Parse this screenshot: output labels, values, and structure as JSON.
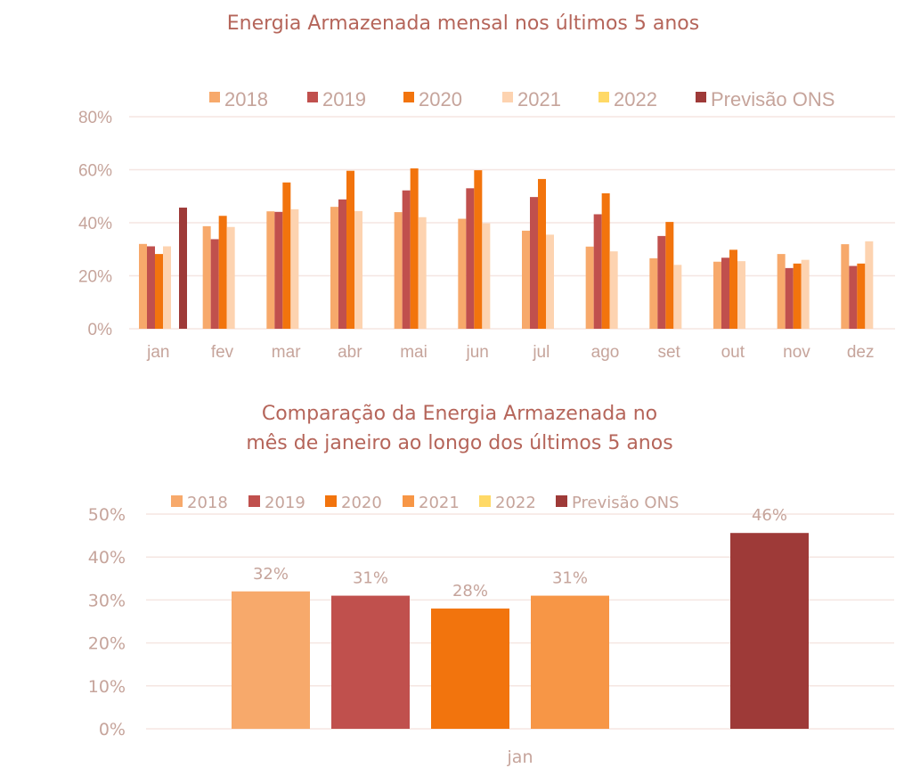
{
  "chart_data": [
    {
      "type": "bar",
      "title": "Energia Armazenada mensal nos últimos 5 anos",
      "xlabel": "",
      "ylabel": "",
      "ylim": [
        0,
        0.8
      ],
      "y_ticks": [
        "0%",
        "20%",
        "40%",
        "60%",
        "80%"
      ],
      "y_tick_values": [
        0,
        0.2,
        0.4,
        0.6,
        0.8
      ],
      "grid": true,
      "legend_position": "top",
      "categories": [
        "jan",
        "fev",
        "mar",
        "abr",
        "mai",
        "jun",
        "jul",
        "ago",
        "set",
        "out",
        "nov",
        "dez"
      ],
      "series": [
        {
          "name": "2018",
          "color": "#F7A96B",
          "values": [
            0.32,
            0.387,
            0.443,
            0.46,
            0.44,
            0.415,
            0.37,
            0.31,
            0.266,
            0.253,
            0.282,
            0.319
          ]
        },
        {
          "name": "2019",
          "color": "#C0504D",
          "values": [
            0.311,
            0.338,
            0.441,
            0.488,
            0.522,
            0.53,
            0.497,
            0.432,
            0.35,
            0.268,
            0.229,
            0.237
          ]
        },
        {
          "name": "2020",
          "color": "#F2740D",
          "values": [
            0.282,
            0.426,
            0.552,
            0.596,
            0.605,
            0.598,
            0.565,
            0.511,
            0.403,
            0.298,
            0.246,
            0.246
          ]
        },
        {
          "name": "2021",
          "color": "#FDD3B0",
          "values": [
            0.311,
            0.384,
            0.451,
            0.444,
            0.421,
            0.398,
            0.355,
            0.292,
            0.241,
            0.255,
            0.26,
            0.33
          ]
        },
        {
          "name": "2022",
          "color": "#FFD966",
          "values": [
            null,
            null,
            null,
            null,
            null,
            null,
            null,
            null,
            null,
            null,
            null,
            null
          ]
        },
        {
          "name": "Previsão ONS",
          "color": "#9E3A38",
          "values": [
            0.457,
            null,
            null,
            null,
            null,
            null,
            null,
            null,
            null,
            null,
            null,
            null
          ]
        }
      ]
    },
    {
      "type": "bar",
      "title": "Comparação da Energia Armazenada no mês de janeiro ao longo dos últimos 5 anos",
      "title_lines": [
        "Comparação da Energia Armazenada no",
        "mês de janeiro ao longo dos últimos 5 anos"
      ],
      "xlabel": "",
      "ylabel": "",
      "ylim": [
        0,
        0.5
      ],
      "y_ticks": [
        "0%",
        "10%",
        "20%",
        "30%",
        "40%",
        "50%"
      ],
      "y_tick_values": [
        0,
        0.1,
        0.2,
        0.3,
        0.4,
        0.5
      ],
      "grid": true,
      "legend_position": "top",
      "categories": [
        "jan"
      ],
      "series": [
        {
          "name": "2018",
          "color": "#F7A96B",
          "values": [
            0.32
          ],
          "label": "32%"
        },
        {
          "name": "2019",
          "color": "#C0504D",
          "values": [
            0.31
          ],
          "label": "31%"
        },
        {
          "name": "2020",
          "color": "#F2740D",
          "values": [
            0.28
          ],
          "label": "28%"
        },
        {
          "name": "2021",
          "color": "#F79646",
          "values": [
            0.31
          ],
          "label": "31%"
        },
        {
          "name": "2022",
          "color": "#FFD966",
          "values": [
            null
          ],
          "label": ""
        },
        {
          "name": "Previsão ONS",
          "color": "#9E3A38",
          "values": [
            0.456
          ],
          "label": "46%"
        }
      ]
    }
  ],
  "colors": {
    "title": "#b5655a",
    "axis_text": "#c6a49b",
    "gridline": "#f5e6e2"
  }
}
